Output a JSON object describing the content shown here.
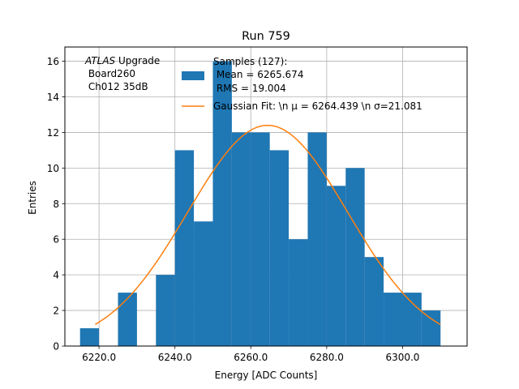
{
  "chart_data": {
    "type": "bar",
    "title": "Run 759",
    "xlabel": "Energy [ADC Counts]",
    "ylabel": "Entries",
    "xlim": [
      6211.0,
      6317.0
    ],
    "ylim": [
      0,
      16.8
    ],
    "xticks": [
      6220.0,
      6240.0,
      6260.0,
      6280.0,
      6300.0
    ],
    "xtick_labels": [
      "6220.0",
      "6240.0",
      "6260.0",
      "6280.0",
      "6300.0"
    ],
    "yticks": [
      0,
      2,
      4,
      6,
      8,
      10,
      12,
      14,
      16
    ],
    "ytick_labels": [
      "0",
      "2",
      "4",
      "6",
      "8",
      "10",
      "12",
      "14",
      "16"
    ],
    "grid": true,
    "bin_edges": [
      6215,
      6220,
      6225,
      6230,
      6235,
      6240,
      6245,
      6250,
      6255,
      6260,
      6265,
      6270,
      6275,
      6280,
      6285,
      6290,
      6295,
      6300,
      6305,
      6310
    ],
    "counts": [
      1,
      0,
      3,
      0,
      4,
      11,
      7,
      16,
      12,
      12,
      11,
      6,
      12,
      9,
      10,
      5,
      3,
      3,
      2
    ],
    "bar_color": "#1f77b4",
    "fit_color": "#ff7f0e",
    "fit": {
      "mu": 6264.439,
      "sigma": 21.081,
      "amplitude": 12.4,
      "x_range": [
        6219.0,
        6310.0
      ]
    },
    "annotation_lines": [
      "ATLAS Upgrade",
      " Board260",
      " Ch012 35dB"
    ],
    "annotation_italic_word": "ATLAS",
    "annotation_rest_of_first_line": " Upgrade",
    "legend": {
      "placement": "top-right",
      "histogram_entry": [
        "Samples (127):",
        " Mean = 6265.674",
        " RMS = 19.004"
      ],
      "fit_entry": "Gaussian Fit: \\n μ = 6264.439 \\n σ=21.081"
    }
  }
}
